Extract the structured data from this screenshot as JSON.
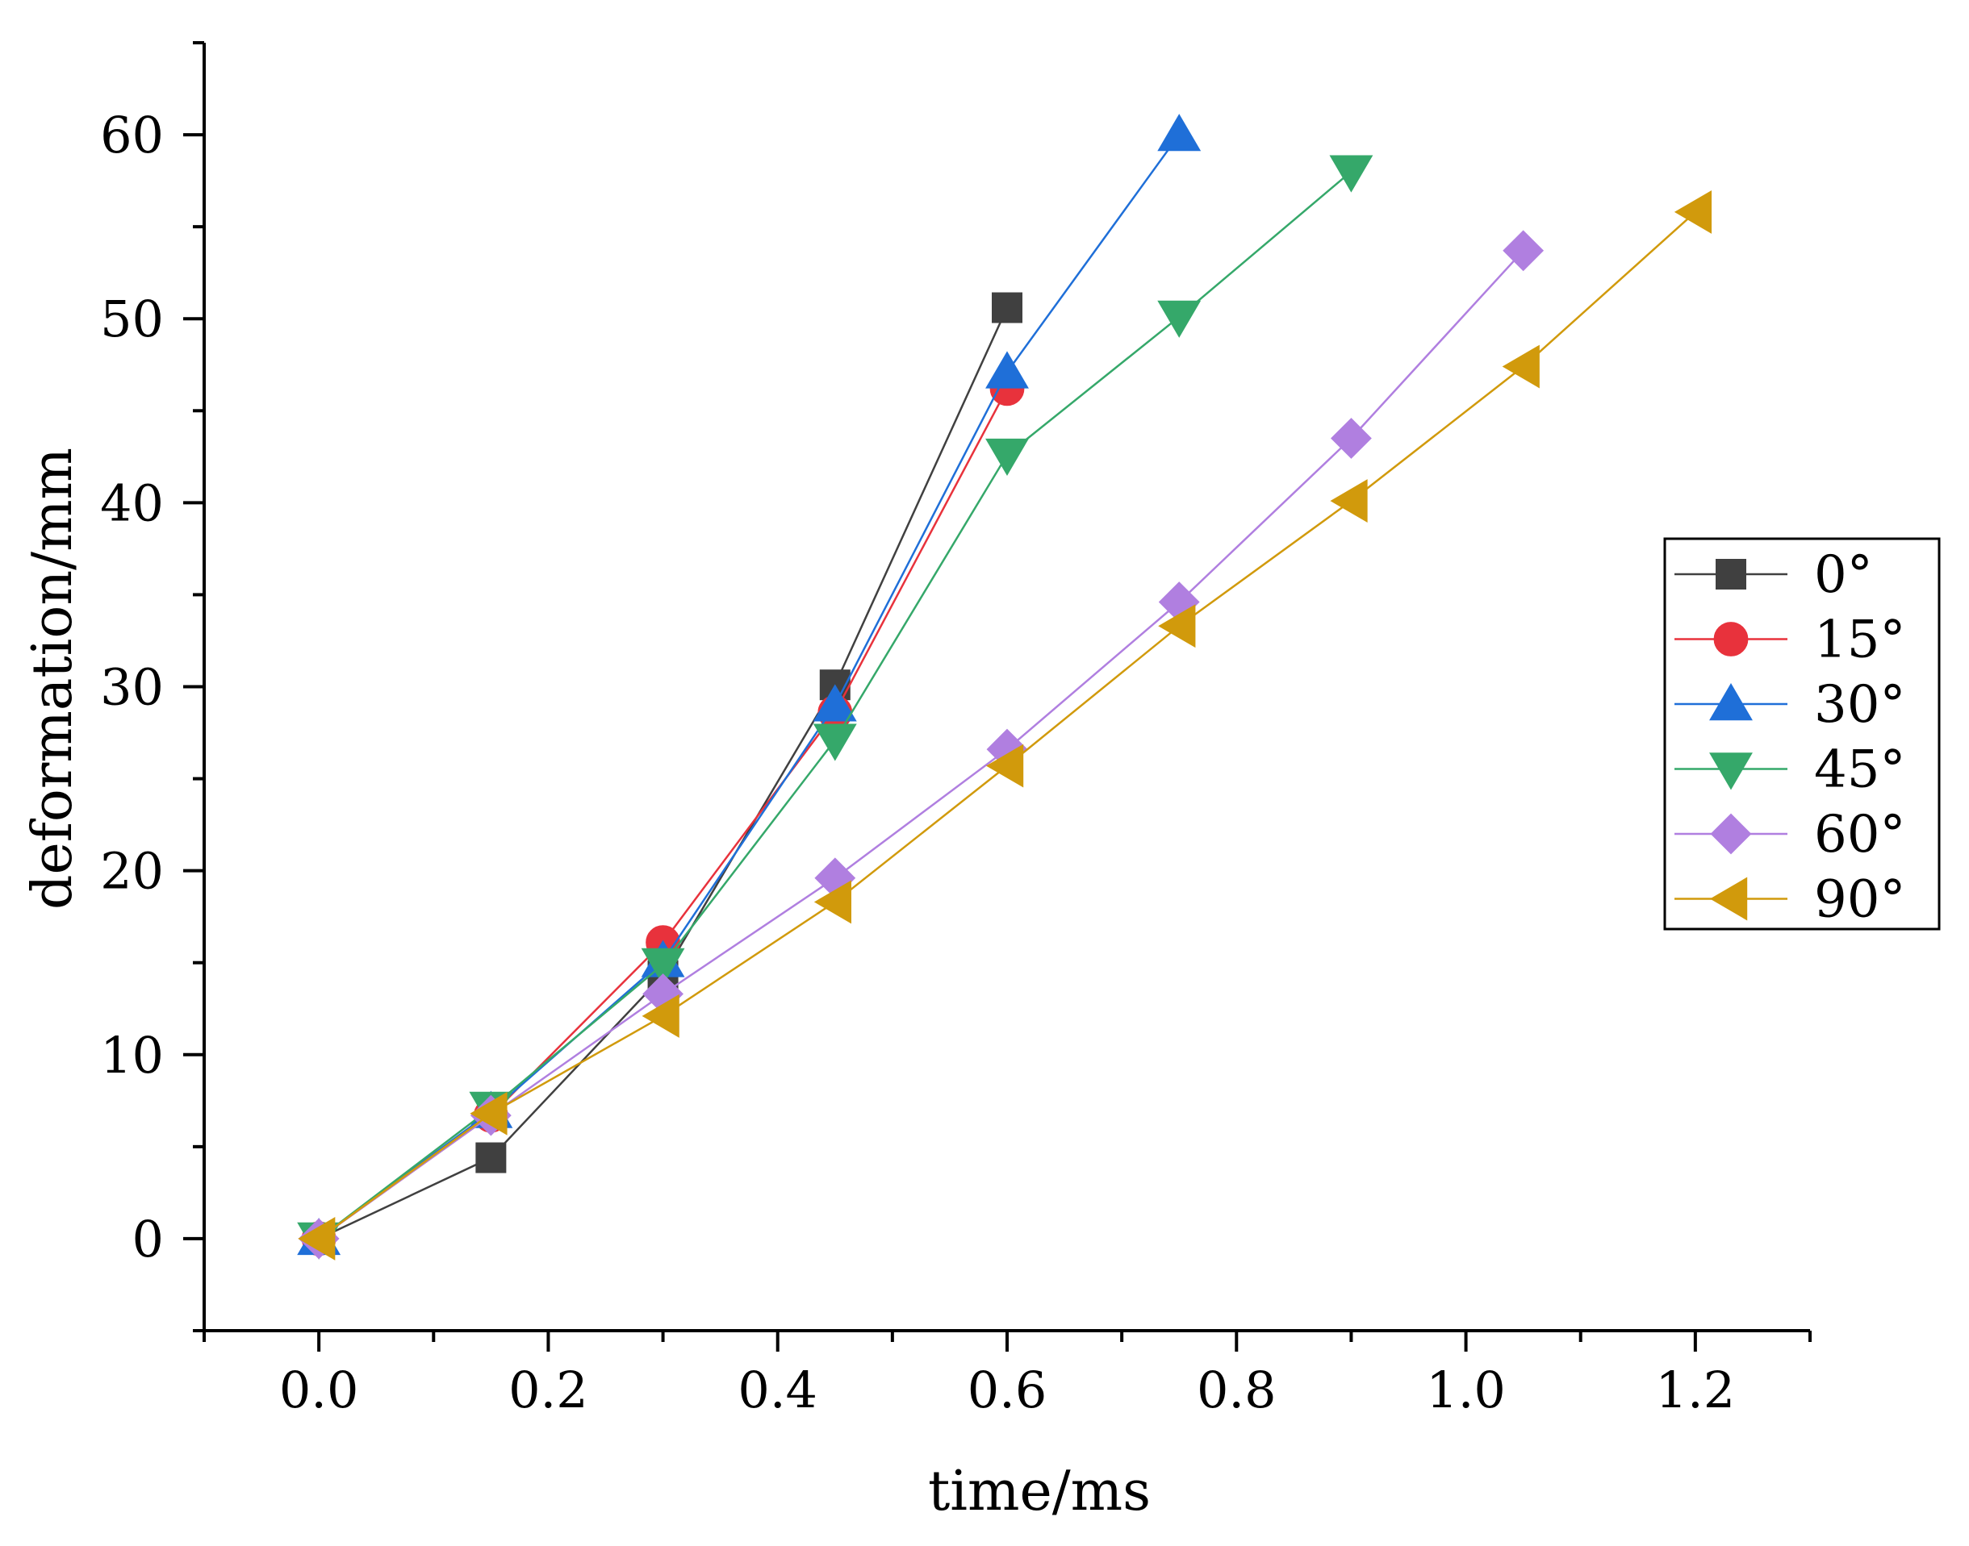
{
  "chart_data": {
    "type": "line",
    "title": "",
    "xlabel": "time/ms",
    "ylabel": "deformation/mm",
    "xlim": [
      -0.1,
      1.3
    ],
    "ylim": [
      -5,
      65
    ],
    "xticks": [
      0.0,
      0.2,
      0.4,
      0.6,
      0.8,
      1.0,
      1.2
    ],
    "xtick_labels": [
      "0.0",
      "0.2",
      "0.4",
      "0.6",
      "0.8",
      "1.0",
      "1.2"
    ],
    "yticks": [
      0,
      10,
      20,
      30,
      40,
      50,
      60
    ],
    "ytick_labels": [
      "0",
      "10",
      "20",
      "30",
      "40",
      "50",
      "60"
    ],
    "grid": false,
    "legend_position": "right",
    "series": [
      {
        "name": "0°",
        "color": "#404040",
        "marker": "square",
        "x": [
          0,
          0.15,
          0.3,
          0.45,
          0.6
        ],
        "y": [
          0,
          4.4,
          14.3,
          30.1,
          50.6
        ]
      },
      {
        "name": "15°",
        "color": "#e8323c",
        "marker": "circle",
        "x": [
          0,
          0.15,
          0.3,
          0.45,
          0.6
        ],
        "y": [
          0,
          6.7,
          16.1,
          28.6,
          46.2
        ]
      },
      {
        "name": "30°",
        "color": "#1f6fd8",
        "marker": "triangle-up",
        "x": [
          0,
          0.15,
          0.3,
          0.45,
          0.6,
          0.75
        ],
        "y": [
          0,
          6.9,
          15.1,
          29.0,
          47.1,
          60.0
        ]
      },
      {
        "name": "45°",
        "color": "#35a86a",
        "marker": "triangle-down",
        "x": [
          0,
          0.15,
          0.3,
          0.45,
          0.6,
          0.75,
          0.9
        ],
        "y": [
          0,
          7.1,
          14.9,
          27.1,
          42.6,
          50.1,
          58.0
        ]
      },
      {
        "name": "60°",
        "color": "#b07fe0",
        "marker": "diamond",
        "x": [
          0,
          0.15,
          0.3,
          0.45,
          0.6,
          0.75,
          0.9,
          1.05
        ],
        "y": [
          0,
          6.7,
          13.3,
          19.6,
          26.6,
          34.6,
          43.5,
          53.7
        ]
      },
      {
        "name": "90°",
        "color": "#d19a0c",
        "marker": "triangle-left",
        "x": [
          0,
          0.15,
          0.3,
          0.45,
          0.6,
          0.75,
          0.9,
          1.05,
          1.2
        ],
        "y": [
          0,
          6.8,
          12.1,
          18.3,
          25.7,
          33.3,
          40.1,
          47.4,
          55.8
        ]
      }
    ]
  }
}
